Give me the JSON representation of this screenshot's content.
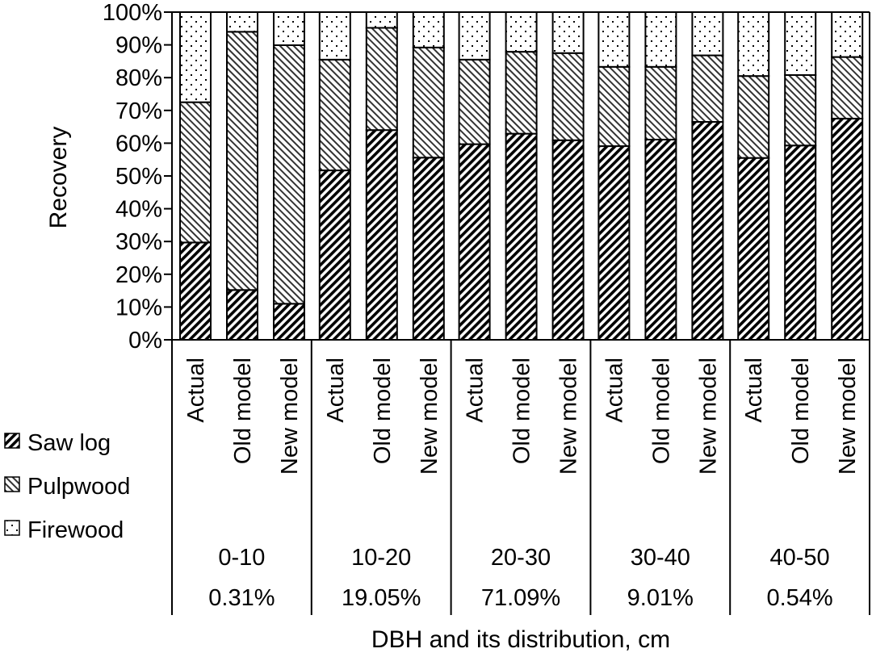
{
  "chart_data": {
    "type": "bar",
    "stacked": true,
    "title": "",
    "xlabel": "DBH and its distribution, cm",
    "ylabel": "Recovery",
    "ylim": [
      0,
      100
    ],
    "yticks": [
      "0%",
      "10%",
      "20%",
      "30%",
      "40%",
      "50%",
      "60%",
      "70%",
      "80%",
      "90%",
      "100%"
    ],
    "grid": false,
    "legend_position": "bottom-left",
    "bar_labels": [
      "Actual",
      "Old model",
      "New model"
    ],
    "groups": [
      {
        "label": "0-10",
        "share": "0.31%"
      },
      {
        "label": "10-20",
        "share": "19.05%"
      },
      {
        "label": "20-30",
        "share": "71.09%"
      },
      {
        "label": "30-40",
        "share": "9.01%"
      },
      {
        "label": "40-50",
        "share": "0.54%"
      }
    ],
    "series": [
      {
        "name": "Saw log",
        "pattern": "dense-back-diagonal",
        "values": [
          29.7,
          15.2,
          11.0,
          51.7,
          64.0,
          55.6,
          59.7,
          62.9,
          60.9,
          59.1,
          61.1,
          66.5,
          55.5,
          59.3,
          67.5
        ]
      },
      {
        "name": "Pulpwood",
        "pattern": "light-forward-diagonal",
        "values": [
          42.8,
          78.8,
          78.9,
          33.8,
          31.2,
          33.6,
          25.8,
          25.0,
          26.6,
          24.2,
          22.2,
          20.3,
          25.0,
          21.5,
          18.8
        ]
      },
      {
        "name": "Firewood",
        "pattern": "dots",
        "values": [
          27.5,
          6.0,
          10.1,
          14.5,
          4.8,
          10.8,
          14.5,
          12.1,
          12.5,
          16.7,
          16.7,
          13.2,
          19.5,
          19.2,
          13.7
        ]
      }
    ]
  }
}
